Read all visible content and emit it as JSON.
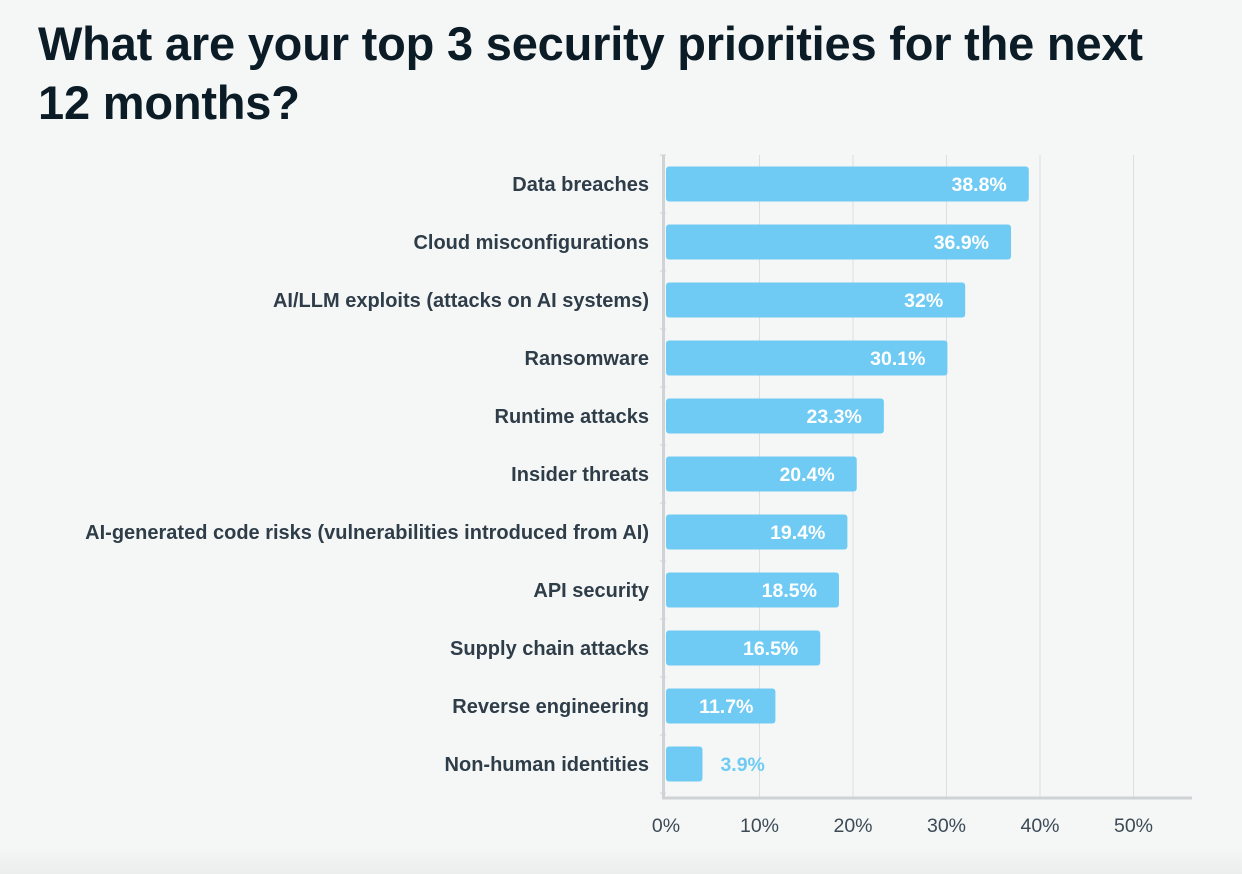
{
  "title": "What are your top 3 security priorities for the next 12 months?",
  "colors": {
    "bar": "#6fcbf3",
    "value_inside": "#ffffff",
    "value_outside": "#6fcbf3",
    "grid": "#dcdfe1",
    "axis": "#cfd3d6"
  },
  "chart_data": {
    "type": "bar",
    "orientation": "horizontal",
    "categories": [
      "Data breaches",
      "Cloud misconfigurations",
      "AI/LLM exploits (attacks on AI systems)",
      "Ransomware",
      "Runtime attacks",
      "Insider threats",
      "AI-generated code risks (vulnerabilities introduced from AI)",
      "API security",
      "Supply chain attacks",
      "Reverse engineering",
      "Non-human identities"
    ],
    "values": [
      38.8,
      36.9,
      32,
      30.1,
      23.3,
      20.4,
      19.4,
      18.5,
      16.5,
      11.7,
      3.9
    ],
    "value_labels": [
      "38.8%",
      "36.9%",
      "32%",
      "30.1%",
      "23.3%",
      "20.4%",
      "19.4%",
      "18.5%",
      "16.5%",
      "11.7%",
      "3.9%"
    ],
    "xlim": [
      0,
      50
    ],
    "xticks": [
      0,
      10,
      20,
      30,
      40,
      50
    ],
    "xtick_labels": [
      "0%",
      "10%",
      "20%",
      "30%",
      "40%",
      "50%"
    ],
    "grid": true
  }
}
